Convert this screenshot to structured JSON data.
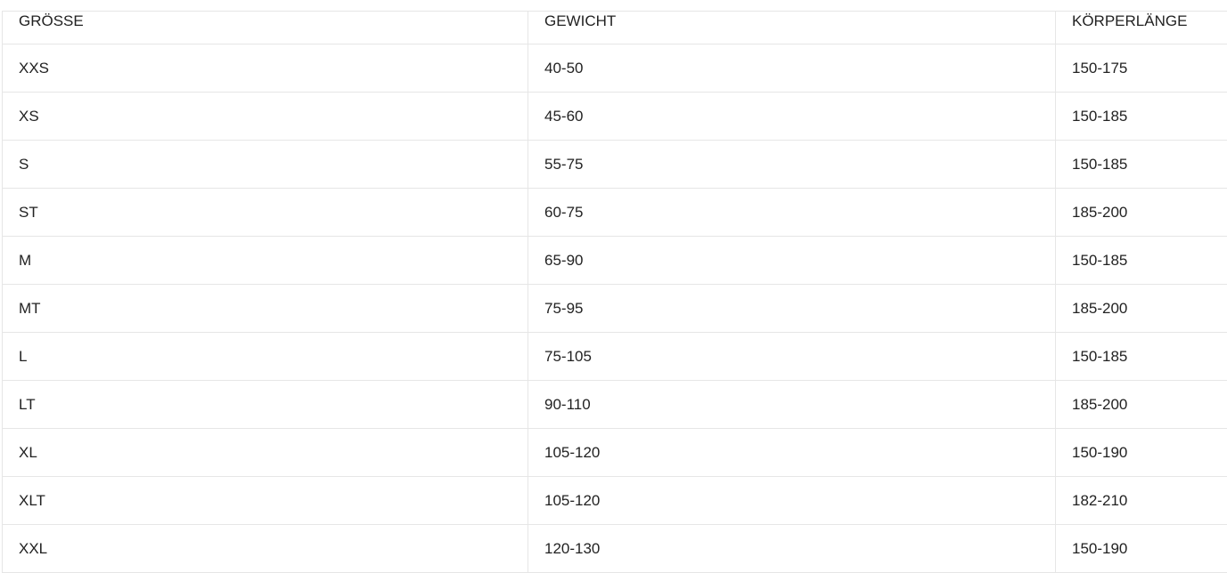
{
  "headers": [
    "GRÖSSE",
    "GEWICHT",
    "KÖRPERLÄNGE"
  ],
  "rows": [
    [
      "XXS",
      "40-50",
      "150-175"
    ],
    [
      "XS",
      "45-60",
      "150-185"
    ],
    [
      "S",
      "55-75",
      "150-185"
    ],
    [
      "ST",
      "60-75",
      "185-200"
    ],
    [
      "M",
      "65-90",
      "150-185"
    ],
    [
      "MT",
      "75-95",
      "185-200"
    ],
    [
      "L",
      "75-105",
      "150-185"
    ],
    [
      "LT",
      "90-110",
      "185-200"
    ],
    [
      "XL",
      "105-120",
      "150-190"
    ],
    [
      "XLT",
      "105-120",
      "182-210"
    ],
    [
      "XXL",
      "120-130",
      "150-190"
    ]
  ]
}
